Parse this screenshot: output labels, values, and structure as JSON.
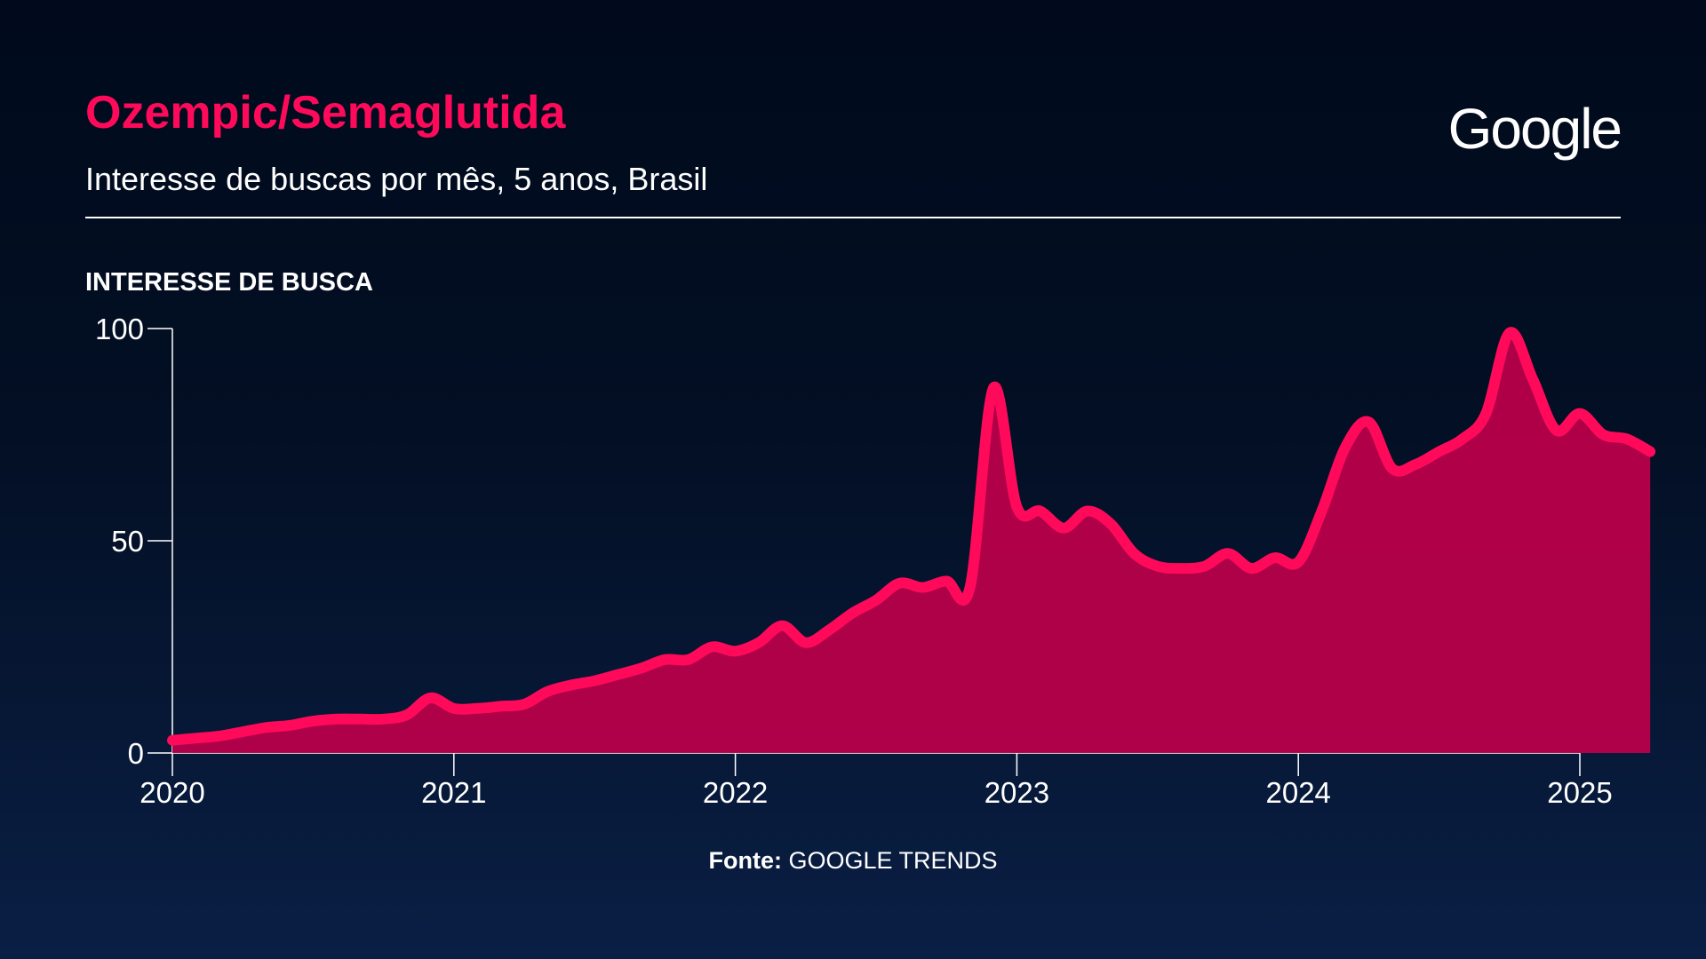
{
  "header": {
    "title": "Ozempic/Semaglutida",
    "subtitle": "Interesse de buscas por mês, 5 anos, Brasil",
    "logo": "Google"
  },
  "colors": {
    "accent": "#ff0a5a",
    "area_fill": "#b8004a",
    "background": "#000a1c"
  },
  "footer": {
    "source_label": "Fonte:",
    "source_value": "GOOGLE TRENDS"
  },
  "chart_data": {
    "type": "area",
    "title": "Ozempic/Semaglutida",
    "subtitle": "Interesse de buscas por mês, 5 anos, Brasil",
    "ylabel": "INTERESSE DE BUSCA",
    "xlabel": "",
    "ylim": [
      0,
      100
    ],
    "yticks": [
      0,
      50,
      100
    ],
    "xlim": [
      2020,
      2025
    ],
    "xticks": [
      "2020",
      "2021",
      "2022",
      "2023",
      "2024",
      "2025"
    ],
    "grid": false,
    "x_start": "2020-01",
    "x_step": "month",
    "values": [
      3,
      3.5,
      4,
      5,
      6,
      6.5,
      7.5,
      8,
      8,
      8,
      9,
      13,
      10.5,
      10.5,
      11,
      11.5,
      14.5,
      16,
      17,
      18.5,
      20,
      22,
      22,
      25,
      24,
      26,
      30,
      26,
      29,
      33,
      36,
      40,
      39,
      40.5,
      39,
      86,
      58,
      57,
      53,
      57,
      54,
      47,
      44,
      43.5,
      44,
      47,
      43.5,
      46,
      45,
      57,
      72,
      78,
      67,
      68,
      71,
      74,
      80,
      99,
      88,
      76,
      80,
      75,
      74,
      71
    ]
  }
}
